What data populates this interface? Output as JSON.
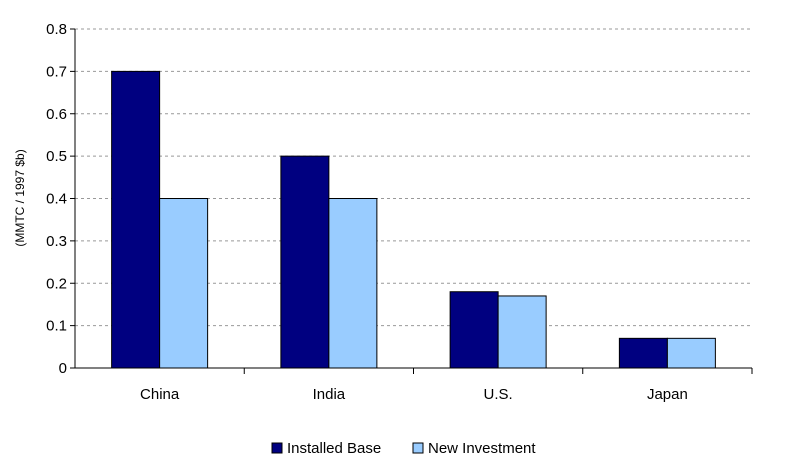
{
  "chart_data": {
    "type": "bar",
    "title": "",
    "xlabel": "",
    "ylabel": "(MMTC / 1997 $b)",
    "ylim": [
      0,
      0.8
    ],
    "yticks": [
      "0",
      "0.1",
      "0.2",
      "0.3",
      "0.4",
      "0.5",
      "0.6",
      "0.7",
      "0.8"
    ],
    "categories": [
      "China",
      "India",
      "U.S.",
      "Japan"
    ],
    "series": [
      {
        "name": "Installed Base",
        "values": [
          0.7,
          0.5,
          0.18,
          0.07
        ],
        "color": "#000080"
      },
      {
        "name": "New Investment",
        "values": [
          0.4,
          0.4,
          0.17,
          0.07
        ],
        "color": "#99CCFF"
      }
    ],
    "grid": true,
    "legend_position": "bottom-center"
  }
}
